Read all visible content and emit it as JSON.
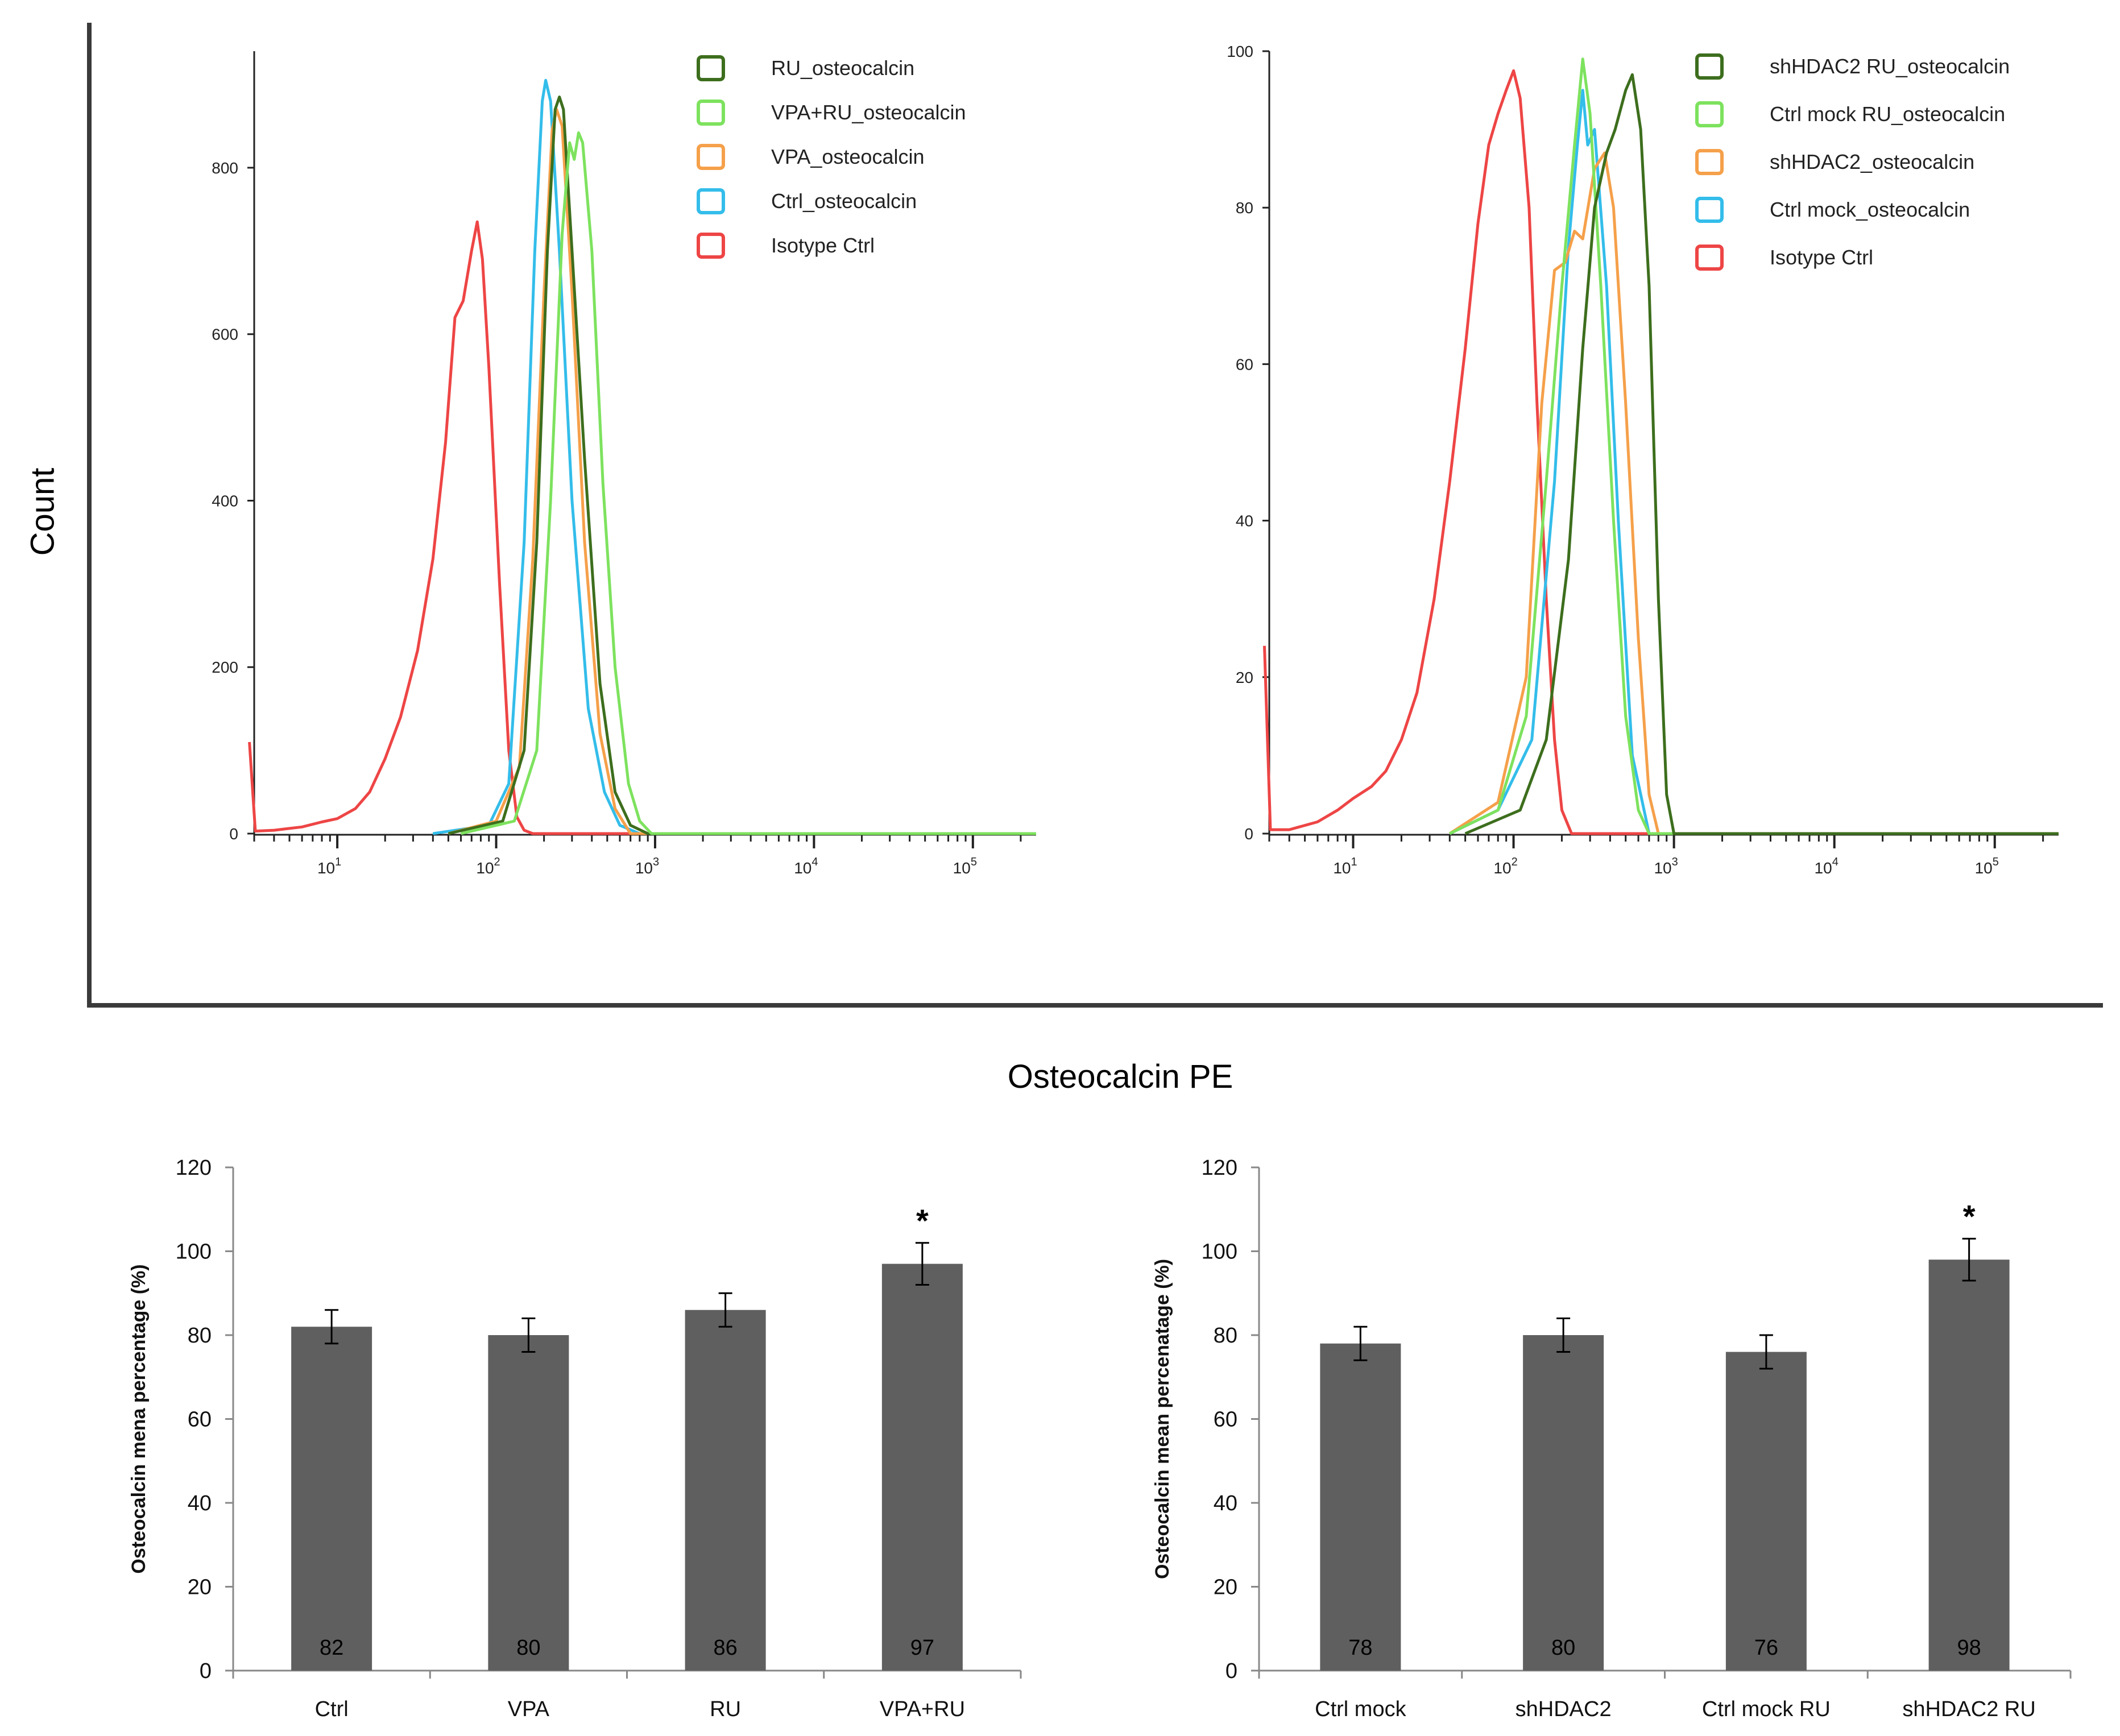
{
  "figure": {
    "shared_ylabel": "Count",
    "shared_xlabel": "Osteocalcin PE"
  },
  "chart_data": [
    {
      "type": "line",
      "panel": "histogram-left",
      "x_scale": "log",
      "xlim": [
        3,
        250000
      ],
      "ylim": [
        0,
        940
      ],
      "y_ticks": [
        0,
        200,
        400,
        600,
        800
      ],
      "x_ticks": [
        {
          "value": 10,
          "base": "10",
          "exp": "1"
        },
        {
          "value": 100,
          "base": "10",
          "exp": "2"
        },
        {
          "value": 1000,
          "base": "10",
          "exp": "3"
        },
        {
          "value": 10000,
          "base": "10",
          "exp": "4"
        },
        {
          "value": 100000,
          "base": "10",
          "exp": "5"
        }
      ],
      "series": [
        {
          "name": "Isotype Ctrl",
          "color": "#ee4545",
          "points": [
            [
              2.8,
              110
            ],
            [
              3.05,
              3
            ],
            [
              4,
              4
            ],
            [
              6,
              8
            ],
            [
              8,
              14
            ],
            [
              10,
              18
            ],
            [
              13,
              30
            ],
            [
              16,
              50
            ],
            [
              20,
              90
            ],
            [
              25,
              140
            ],
            [
              32,
              220
            ],
            [
              40,
              330
            ],
            [
              48,
              470
            ],
            [
              55,
              620
            ],
            [
              62,
              640
            ],
            [
              70,
              700
            ],
            [
              76,
              735
            ],
            [
              82,
              690
            ],
            [
              90,
              560
            ],
            [
              105,
              300
            ],
            [
              120,
              100
            ],
            [
              135,
              20
            ],
            [
              150,
              4
            ],
            [
              170,
              0
            ],
            [
              250000,
              0
            ]
          ]
        },
        {
          "name": "Ctrl_osteocalcin",
          "color": "#33bdea",
          "points": [
            [
              40,
              0
            ],
            [
              90,
              10
            ],
            [
              120,
              60
            ],
            [
              150,
              350
            ],
            [
              175,
              700
            ],
            [
              195,
              880
            ],
            [
              205,
              905
            ],
            [
              220,
              880
            ],
            [
              250,
              700
            ],
            [
              300,
              400
            ],
            [
              380,
              150
            ],
            [
              480,
              50
            ],
            [
              600,
              10
            ],
            [
              800,
              0
            ],
            [
              250000,
              0
            ]
          ]
        },
        {
          "name": "VPA_osteocalcin",
          "color": "#f5a04a",
          "points": [
            [
              50,
              0
            ],
            [
              100,
              15
            ],
            [
              140,
              80
            ],
            [
              170,
              330
            ],
            [
              200,
              650
            ],
            [
              225,
              845
            ],
            [
              240,
              870
            ],
            [
              260,
              850
            ],
            [
              300,
              650
            ],
            [
              360,
              350
            ],
            [
              450,
              120
            ],
            [
              560,
              30
            ],
            [
              700,
              0
            ],
            [
              250000,
              0
            ]
          ]
        },
        {
          "name": "RU_osteocalcin",
          "color": "#3d6e1d",
          "points": [
            [
              50,
              0
            ],
            [
              110,
              15
            ],
            [
              150,
              100
            ],
            [
              180,
              350
            ],
            [
              210,
              700
            ],
            [
              235,
              870
            ],
            [
              250,
              885
            ],
            [
              265,
              870
            ],
            [
              300,
              700
            ],
            [
              360,
              450
            ],
            [
              450,
              180
            ],
            [
              560,
              50
            ],
            [
              700,
              10
            ],
            [
              900,
              0
            ],
            [
              250000,
              0
            ]
          ]
        },
        {
          "name": "VPA+RU_osteocalcin",
          "color": "#7de25e",
          "points": [
            [
              60,
              0
            ],
            [
              130,
              15
            ],
            [
              180,
              100
            ],
            [
              220,
              400
            ],
            [
              260,
              720
            ],
            [
              290,
              830
            ],
            [
              310,
              810
            ],
            [
              330,
              842
            ],
            [
              350,
              830
            ],
            [
              400,
              700
            ],
            [
              470,
              420
            ],
            [
              560,
              200
            ],
            [
              680,
              60
            ],
            [
              800,
              15
            ],
            [
              950,
              0
            ],
            [
              250000,
              0
            ]
          ]
        }
      ],
      "legend": {
        "position": "top-right",
        "entries": [
          "RU_osteocalcin",
          "VPA+RU_osteocalcin",
          "VPA_osteocalcin",
          "Ctrl_osteocalcin",
          "Isotype Ctrl"
        ]
      }
    },
    {
      "type": "line",
      "panel": "histogram-right",
      "x_scale": "log",
      "xlim": [
        3,
        250000
      ],
      "ylim": [
        0,
        100
      ],
      "y_ticks": [
        0,
        20,
        40,
        60,
        80,
        100
      ],
      "x_ticks": [
        {
          "value": 10,
          "base": "10",
          "exp": "1"
        },
        {
          "value": 100,
          "base": "10",
          "exp": "2"
        },
        {
          "value": 1000,
          "base": "10",
          "exp": "3"
        },
        {
          "value": 10000,
          "base": "10",
          "exp": "4"
        },
        {
          "value": 100000,
          "base": "10",
          "exp": "5"
        }
      ],
      "series": [
        {
          "name": "Isotype Ctrl",
          "color": "#ee4545",
          "points": [
            [
              2.8,
              24
            ],
            [
              3.05,
              0.5
            ],
            [
              4,
              0.5
            ],
            [
              6,
              1.5
            ],
            [
              8,
              3
            ],
            [
              10,
              4.5
            ],
            [
              13,
              6
            ],
            [
              16,
              8
            ],
            [
              20,
              12
            ],
            [
              25,
              18
            ],
            [
              32,
              30
            ],
            [
              40,
              45
            ],
            [
              50,
              62
            ],
            [
              60,
              78
            ],
            [
              70,
              88
            ],
            [
              80,
              92
            ],
            [
              90,
              95
            ],
            [
              100,
              97.5
            ],
            [
              110,
              94
            ],
            [
              125,
              80
            ],
            [
              140,
              55
            ],
            [
              160,
              30
            ],
            [
              180,
              12
            ],
            [
              200,
              3
            ],
            [
              230,
              0
            ],
            [
              250000,
              0
            ]
          ]
        },
        {
          "name": "Ctrl mock_osteocalcin",
          "color": "#33bdea",
          "points": [
            [
              40,
              0
            ],
            [
              80,
              3
            ],
            [
              130,
              12
            ],
            [
              180,
              45
            ],
            [
              220,
              75
            ],
            [
              250,
              88
            ],
            [
              270,
              95
            ],
            [
              290,
              88
            ],
            [
              320,
              90
            ],
            [
              380,
              70
            ],
            [
              450,
              40
            ],
            [
              550,
              10
            ],
            [
              700,
              0
            ],
            [
              250000,
              0
            ]
          ]
        },
        {
          "name": "shHDAC2_osteocalcin",
          "color": "#f5a04a",
          "points": [
            [
              40,
              0
            ],
            [
              80,
              4
            ],
            [
              120,
              20
            ],
            [
              150,
              55
            ],
            [
              180,
              72
            ],
            [
              210,
              73
            ],
            [
              240,
              77
            ],
            [
              270,
              76
            ],
            [
              320,
              85
            ],
            [
              370,
              87
            ],
            [
              420,
              80
            ],
            [
              500,
              55
            ],
            [
              600,
              25
            ],
            [
              700,
              5
            ],
            [
              800,
              0
            ],
            [
              250000,
              0
            ]
          ]
        },
        {
          "name": "Ctrl mock RU_osteocalcin",
          "color": "#7de25e",
          "points": [
            [
              40,
              0
            ],
            [
              80,
              3
            ],
            [
              120,
              15
            ],
            [
              160,
              45
            ],
            [
              200,
              70
            ],
            [
              240,
              88
            ],
            [
              270,
              99
            ],
            [
              300,
              92
            ],
            [
              350,
              70
            ],
            [
              420,
              40
            ],
            [
              500,
              15
            ],
            [
              600,
              3
            ],
            [
              700,
              0
            ],
            [
              250000,
              0
            ]
          ]
        },
        {
          "name": "shHDAC2 RU_osteocalcin",
          "color": "#3d6e1d",
          "points": [
            [
              50,
              0
            ],
            [
              110,
              3
            ],
            [
              160,
              12
            ],
            [
              220,
              35
            ],
            [
              270,
              62
            ],
            [
              320,
              80
            ],
            [
              380,
              87
            ],
            [
              430,
              90
            ],
            [
              500,
              95
            ],
            [
              550,
              97
            ],
            [
              620,
              90
            ],
            [
              700,
              70
            ],
            [
              800,
              30
            ],
            [
              900,
              5
            ],
            [
              1000,
              0
            ],
            [
              250000,
              0
            ]
          ]
        }
      ],
      "legend": {
        "position": "top-right",
        "entries": [
          "shHDAC2 RU_osteocalcin",
          "Ctrl mock RU_osteocalcin",
          "shHDAC2_osteocalcin",
          "Ctrl mock_osteocalcin",
          "Isotype Ctrl"
        ]
      }
    },
    {
      "type": "bar",
      "panel": "bar-left",
      "categories": [
        "Ctrl",
        "VPA",
        "RU",
        "VPA+RU"
      ],
      "values": [
        82,
        80,
        86,
        97
      ],
      "value_labels": [
        "82",
        "80",
        "86",
        "97"
      ],
      "errors": [
        4,
        4,
        4,
        5
      ],
      "significance": [
        "",
        "",
        "",
        "*"
      ],
      "ylabel": "Osteocalcin mena percentage (%)",
      "ylim": [
        0,
        120
      ],
      "y_ticks": [
        0,
        20,
        40,
        60,
        80,
        100,
        120
      ],
      "bar_color": "#5f5f5f"
    },
    {
      "type": "bar",
      "panel": "bar-right",
      "categories": [
        "Ctrl mock",
        "shHDAC2",
        "Ctrl mock RU",
        "shHDAC2 RU"
      ],
      "values": [
        78,
        80,
        76,
        98
      ],
      "value_labels": [
        "78",
        "80",
        "76",
        "98"
      ],
      "errors": [
        4,
        4,
        4,
        5
      ],
      "significance": [
        "",
        "",
        "",
        "*"
      ],
      "ylabel": "Osteocalcin mean percenatage (%)",
      "ylim": [
        0,
        120
      ],
      "y_ticks": [
        0,
        20,
        40,
        60,
        80,
        100,
        120
      ],
      "bar_color": "#5f5f5f"
    }
  ]
}
